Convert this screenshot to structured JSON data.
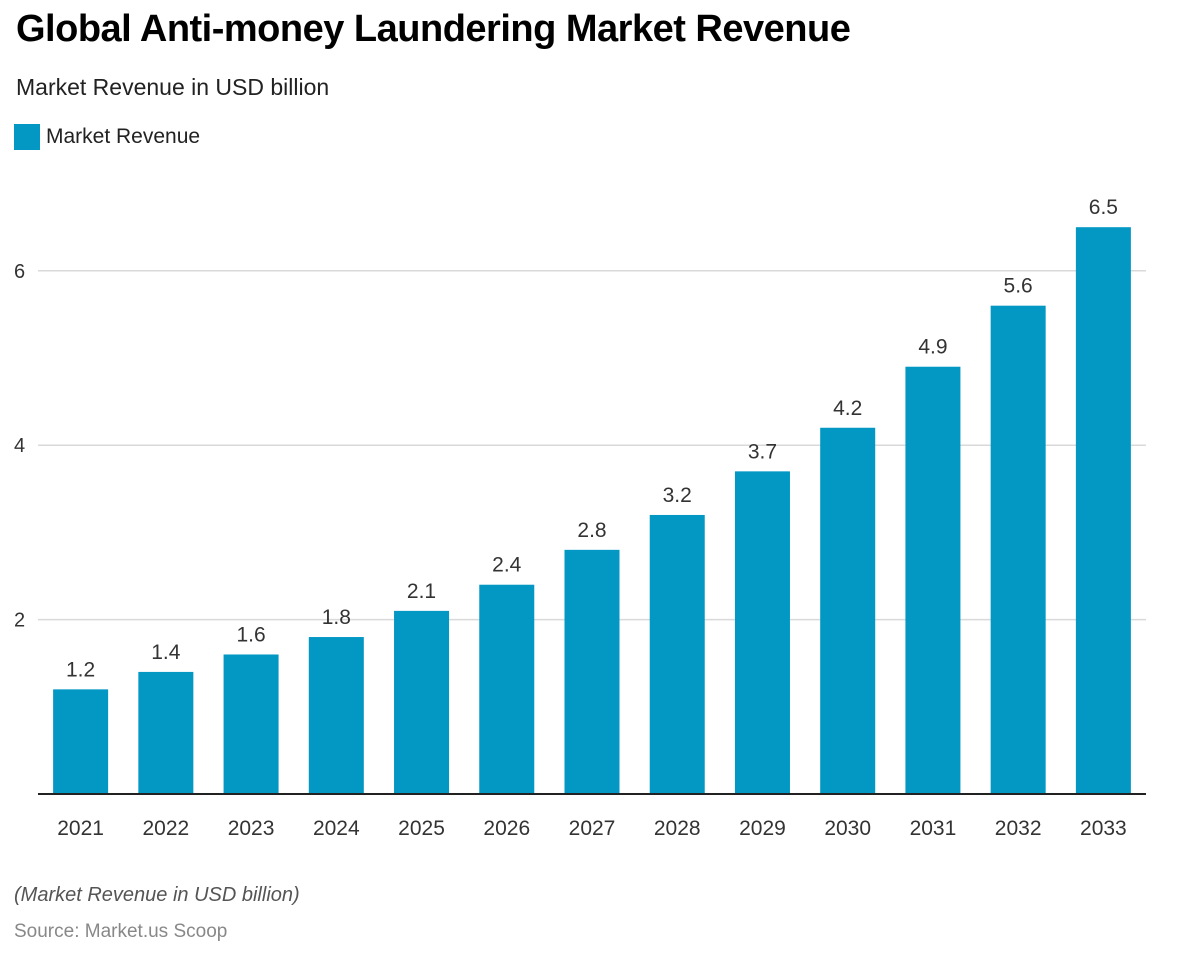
{
  "title": "Global Anti-money Laundering Market Revenue",
  "subtitle": "Market Revenue in USD billion",
  "legend": {
    "label": "Market Revenue"
  },
  "note": "(Market Revenue in USD billion)",
  "source": "Source: Market.us Scoop",
  "colors": {
    "bar": "#0397c4",
    "grid": "#d9d9d9",
    "axis": "#222222",
    "tick_text": "#333333",
    "value_text": "#333333"
  },
  "chart_data": {
    "type": "bar",
    "categories": [
      "2021",
      "2022",
      "2023",
      "2024",
      "2025",
      "2026",
      "2027",
      "2028",
      "2029",
      "2030",
      "2031",
      "2032",
      "2033"
    ],
    "series": [
      {
        "name": "Market Revenue",
        "values": [
          1.2,
          1.4,
          1.6,
          1.8,
          2.1,
          2.4,
          2.8,
          3.2,
          3.7,
          4.2,
          4.9,
          5.6,
          6.5
        ]
      }
    ],
    "value_labels": [
      "1.2",
      "1.4",
      "1.6",
      "1.8",
      "2.1",
      "2.4",
      "2.8",
      "3.2",
      "3.7",
      "4.2",
      "4.9",
      "5.6",
      "6.5"
    ],
    "y_ticks": [
      2,
      4,
      6
    ],
    "ylim": [
      0,
      6.8
    ],
    "grid": true,
    "legend_position": "top-left"
  }
}
